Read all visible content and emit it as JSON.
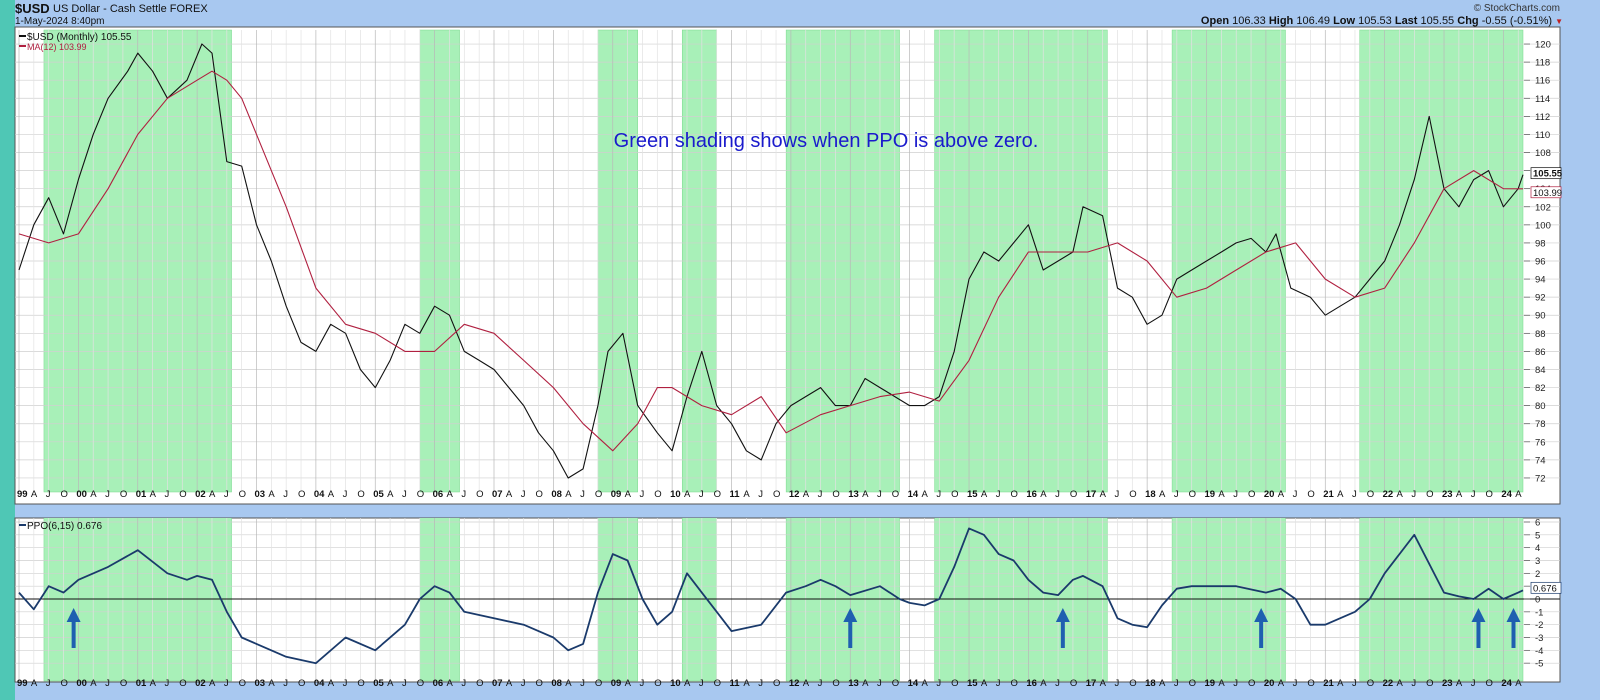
{
  "header": {
    "symbol": "$USD",
    "name": "US Dollar - Cash Settle FOREX",
    "date": "1-May-2024 8:40pm",
    "brand": "© StockCharts.com",
    "open_label": "Open",
    "open": "106.33",
    "high_label": "High",
    "high": "106.49",
    "low_label": "Low",
    "low": "105.53",
    "last_label": "Last",
    "last": "105.55",
    "chg_label": "Chg",
    "chg": "-0.55 (-0.51%)"
  },
  "legend": {
    "price": "$USD (Monthly) 105.55",
    "ma": "MA(12) 103.99",
    "ppo": "PPO(6,15) 0.676"
  },
  "annotation": "Green shading shows when PPO is above zero.",
  "colors": {
    "price": "#111111",
    "ma": "#b02040",
    "ppo": "#1a3a6b",
    "shade": "#a8f0b8",
    "arrow": "#1f5fb0",
    "tag_price_bg": "#ffffff",
    "tag_ma": "#b02040"
  },
  "chart_data": [
    {
      "type": "line",
      "title": "$USD (Monthly) 105.55",
      "x_range": [
        1999.0,
        2024.33
      ],
      "ylim": [
        71,
        121
      ],
      "y_ticks": [
        72,
        74,
        76,
        78,
        80,
        82,
        84,
        86,
        88,
        90,
        92,
        94,
        96,
        98,
        100,
        102,
        104,
        106,
        108,
        110,
        112,
        114,
        116,
        118,
        120
      ],
      "last_value_tags": [
        "105.55",
        "103.99"
      ],
      "x_axis_labels": [
        "99",
        "A",
        "J",
        "O",
        "00",
        "A",
        "J",
        "O",
        "01",
        "A",
        "J",
        "O",
        "02",
        "A",
        "J",
        "O",
        "03",
        "A",
        "J",
        "O",
        "04",
        "A",
        "J",
        "O",
        "05",
        "A",
        "J",
        "O",
        "06",
        "A",
        "J",
        "O",
        "07",
        "A",
        "J",
        "O",
        "08",
        "A",
        "J",
        "O",
        "09",
        "A",
        "J",
        "O",
        "10",
        "A",
        "J",
        "O",
        "11",
        "A",
        "J",
        "O",
        "12",
        "A",
        "J",
        "O",
        "13",
        "A",
        "J",
        "O",
        "14",
        "A",
        "J",
        "O",
        "15",
        "A",
        "J",
        "O",
        "16",
        "A",
        "J",
        "O",
        "17",
        "A",
        "J",
        "O",
        "18",
        "A",
        "J",
        "O",
        "19",
        "A",
        "J",
        "O",
        "20",
        "A",
        "J",
        "O",
        "21",
        "A",
        "J",
        "O",
        "22",
        "A",
        "J",
        "O",
        "23",
        "A",
        "J",
        "O",
        "24",
        "A"
      ],
      "shaded_periods": [
        [
          1999.42,
          2002.58
        ],
        [
          2005.75,
          2006.42
        ],
        [
          2008.75,
          2009.42
        ],
        [
          2010.17,
          2010.75
        ],
        [
          2011.92,
          2013.83
        ],
        [
          2014.42,
          2017.33
        ],
        [
          2018.42,
          2020.33
        ],
        [
          2021.58,
          2024.33
        ]
      ],
      "series": [
        {
          "name": "$USD (Monthly)",
          "x": [
            1999.0,
            1999.25,
            1999.5,
            1999.75,
            2000.0,
            2000.25,
            2000.5,
            2000.83,
            2001.0,
            2001.25,
            2001.5,
            2001.83,
            2002.08,
            2002.25,
            2002.5,
            2002.75,
            2003.0,
            2003.25,
            2003.5,
            2003.75,
            2004.0,
            2004.25,
            2004.5,
            2004.75,
            2005.0,
            2005.25,
            2005.5,
            2005.75,
            2006.0,
            2006.25,
            2006.5,
            2006.75,
            2007.0,
            2007.25,
            2007.5,
            2007.75,
            2008.0,
            2008.25,
            2008.5,
            2008.75,
            2008.92,
            2009.17,
            2009.42,
            2009.75,
            2010.0,
            2010.25,
            2010.5,
            2010.75,
            2011.0,
            2011.25,
            2011.5,
            2011.75,
            2012.0,
            2012.25,
            2012.5,
            2012.75,
            2013.0,
            2013.25,
            2013.5,
            2013.75,
            2014.0,
            2014.25,
            2014.5,
            2014.75,
            2015.0,
            2015.25,
            2015.5,
            2015.75,
            2016.0,
            2016.25,
            2016.5,
            2016.75,
            2016.92,
            2017.25,
            2017.5,
            2017.75,
            2018.0,
            2018.25,
            2018.5,
            2018.75,
            2019.0,
            2019.25,
            2019.5,
            2019.75,
            2020.0,
            2020.17,
            2020.42,
            2020.75,
            2021.0,
            2021.25,
            2021.5,
            2021.75,
            2022.0,
            2022.25,
            2022.5,
            2022.75,
            2023.0,
            2023.25,
            2023.5,
            2023.75,
            2024.0,
            2024.25,
            2024.33
          ],
          "values": [
            95.0,
            100.0,
            103.0,
            99.0,
            105.0,
            110.0,
            114.0,
            117.0,
            119.0,
            117.0,
            114.0,
            116.0,
            120.0,
            119.0,
            107.0,
            106.5,
            100.0,
            96.0,
            91.0,
            87.0,
            86.0,
            89.0,
            88.0,
            84.0,
            82.0,
            85.0,
            89.0,
            88.0,
            91.0,
            90.0,
            86.0,
            85.0,
            84.0,
            82.0,
            80.0,
            77.0,
            75.0,
            72.0,
            73.0,
            80.0,
            86.0,
            88.0,
            80.0,
            77.0,
            75.0,
            81.0,
            86.0,
            80.0,
            78.0,
            75.0,
            74.0,
            78.0,
            80.0,
            81.0,
            82.0,
            80.0,
            80.0,
            83.0,
            82.0,
            81.0,
            80.0,
            80.0,
            81.0,
            86.0,
            94.0,
            97.0,
            96.0,
            98.0,
            100.0,
            95.0,
            96.0,
            97.0,
            102.0,
            101.0,
            93.0,
            92.0,
            89.0,
            90.0,
            94.0,
            95.0,
            96.0,
            97.0,
            98.0,
            98.5,
            97.0,
            99.0,
            93.0,
            92.0,
            90.0,
            91.0,
            92.0,
            94.0,
            96.0,
            100.0,
            105.0,
            112.0,
            104.0,
            102.0,
            105.0,
            106.0,
            102.0,
            104.0,
            105.55
          ]
        },
        {
          "name": "MA(12)",
          "x": [
            1999.0,
            1999.5,
            2000.0,
            2000.5,
            2001.0,
            2001.5,
            2002.0,
            2002.25,
            2002.5,
            2002.75,
            2003.0,
            2003.5,
            2004.0,
            2004.5,
            2005.0,
            2005.5,
            2006.0,
            2006.5,
            2007.0,
            2007.5,
            2008.0,
            2008.5,
            2009.0,
            2009.42,
            2009.75,
            2010.0,
            2010.5,
            2011.0,
            2011.5,
            2011.92,
            2012.5,
            2013.0,
            2013.5,
            2014.0,
            2014.5,
            2015.0,
            2015.5,
            2016.0,
            2016.5,
            2017.0,
            2017.5,
            2018.0,
            2018.5,
            2019.0,
            2019.5,
            2020.0,
            2020.5,
            2021.0,
            2021.5,
            2022.0,
            2022.5,
            2023.0,
            2023.5,
            2024.0,
            2024.33
          ],
          "values": [
            99.0,
            98.0,
            99.0,
            104.0,
            110.0,
            114.0,
            116.0,
            117.0,
            116.0,
            114.0,
            110.0,
            102.0,
            93.0,
            89.0,
            88.0,
            86.0,
            86.0,
            89.0,
            88.0,
            85.0,
            82.0,
            78.0,
            75.0,
            78.0,
            82.0,
            82.0,
            80.0,
            79.0,
            81.0,
            77.0,
            79.0,
            80.0,
            81.0,
            81.5,
            80.5,
            85.0,
            92.0,
            97.0,
            97.0,
            97.0,
            98.0,
            96.0,
            92.0,
            93.0,
            95.0,
            97.0,
            98.0,
            94.0,
            92.0,
            93.0,
            98.0,
            104.0,
            106.0,
            104.0,
            103.99
          ]
        }
      ]
    },
    {
      "type": "line",
      "title": "PPO(6,15) 0.676",
      "x_range": [
        1999.0,
        2024.33
      ],
      "ylim": [
        -6,
        6
      ],
      "y_ticks": [
        6,
        5,
        4,
        3,
        2,
        1,
        0,
        -1,
        -2,
        -3,
        -4,
        -5
      ],
      "last_value_tags": [
        "0.676"
      ],
      "x_axis_labels": [
        "99",
        "A",
        "J",
        "O",
        "00",
        "A",
        "J",
        "O",
        "01",
        "A",
        "J",
        "O",
        "02",
        "A",
        "J",
        "O",
        "03",
        "A",
        "J",
        "O",
        "04",
        "A",
        "J",
        "O",
        "05",
        "A",
        "J",
        "O",
        "06",
        "A",
        "J",
        "O",
        "07",
        "A",
        "J",
        "O",
        "08",
        "A",
        "J",
        "O",
        "09",
        "A",
        "J",
        "O",
        "10",
        "A",
        "J",
        "O",
        "11",
        "A",
        "J",
        "O",
        "12",
        "A",
        "J",
        "O",
        "13",
        "A",
        "J",
        "O",
        "14",
        "A",
        "J",
        "O",
        "15",
        "A",
        "J",
        "O",
        "16",
        "A",
        "J",
        "O",
        "17",
        "A",
        "J",
        "O",
        "18",
        "A",
        "J",
        "O",
        "19",
        "A",
        "J",
        "O",
        "20",
        "A",
        "J",
        "O",
        "21",
        "A",
        "J",
        "O",
        "22",
        "A",
        "J",
        "O",
        "23",
        "A",
        "J",
        "O",
        "24",
        "A"
      ],
      "zero_line": 0,
      "arrows_at": [
        1999.92,
        2013.0,
        2016.58,
        2019.92,
        2023.58,
        2024.17
      ],
      "series": [
        {
          "name": "PPO(6,15)",
          "x": [
            1999.0,
            1999.25,
            1999.5,
            1999.75,
            2000.0,
            2000.5,
            2001.0,
            2001.5,
            2001.83,
            2002.0,
            2002.25,
            2002.5,
            2002.75,
            2003.0,
            2003.5,
            2004.0,
            2004.5,
            2005.0,
            2005.5,
            2005.75,
            2006.0,
            2006.25,
            2006.5,
            2007.0,
            2007.5,
            2008.0,
            2008.25,
            2008.5,
            2008.75,
            2009.0,
            2009.25,
            2009.5,
            2009.75,
            2010.0,
            2010.25,
            2010.5,
            2010.75,
            2011.0,
            2011.5,
            2011.92,
            2012.25,
            2012.5,
            2012.75,
            2013.0,
            2013.5,
            2013.83,
            2014.0,
            2014.25,
            2014.5,
            2014.75,
            2015.0,
            2015.25,
            2015.5,
            2015.75,
            2016.0,
            2016.25,
            2016.5,
            2016.75,
            2016.92,
            2017.25,
            2017.5,
            2017.75,
            2018.0,
            2018.25,
            2018.5,
            2018.75,
            2019.0,
            2019.5,
            2020.0,
            2020.25,
            2020.5,
            2020.75,
            2021.0,
            2021.5,
            2021.75,
            2022.0,
            2022.5,
            2023.0,
            2023.25,
            2023.5,
            2023.75,
            2024.0,
            2024.25,
            2024.33
          ],
          "values": [
            0.5,
            -0.8,
            1.0,
            0.5,
            1.5,
            2.5,
            3.8,
            2.0,
            1.5,
            1.8,
            1.5,
            -1.0,
            -3.0,
            -3.5,
            -4.5,
            -5.0,
            -3.0,
            -4.0,
            -2.0,
            0.0,
            1.0,
            0.5,
            -1.0,
            -1.5,
            -2.0,
            -3.0,
            -4.0,
            -3.5,
            0.5,
            3.5,
            3.0,
            0.0,
            -2.0,
            -1.0,
            2.0,
            0.5,
            -1.0,
            -2.5,
            -2.0,
            0.5,
            1.0,
            1.5,
            1.0,
            0.3,
            1.0,
            0.0,
            -0.3,
            -0.5,
            0.0,
            2.5,
            5.5,
            5.0,
            3.5,
            3.0,
            1.5,
            0.5,
            0.3,
            1.5,
            1.8,
            1.0,
            -1.5,
            -2.0,
            -2.2,
            -0.5,
            0.8,
            1.0,
            1.0,
            1.0,
            0.5,
            0.8,
            0.0,
            -2.0,
            -2.0,
            -1.0,
            0.0,
            2.0,
            5.0,
            0.5,
            0.2,
            0.0,
            0.8,
            0.0,
            0.5,
            0.676
          ]
        }
      ]
    }
  ]
}
